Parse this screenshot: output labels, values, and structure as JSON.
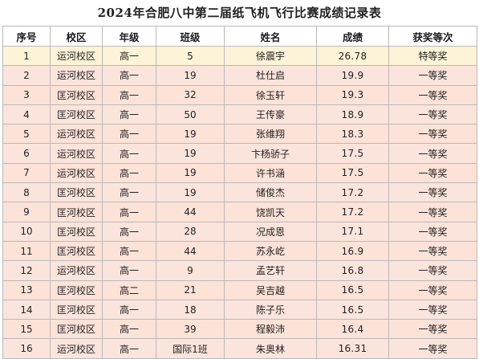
{
  "title": "2024年合肥八中第二届纸飞机飞行比赛成绩记录表",
  "columns": {
    "rank": "序号",
    "campus": "校区",
    "grade": "年级",
    "class": "班级",
    "name": "姓名",
    "score": "成绩",
    "award": "获奖等次"
  },
  "colors": {
    "first_row": "#fdf3d6",
    "row_a": "#fde2d8",
    "row_b": "#fbe4dc",
    "grid": "#b9b9b9"
  },
  "rows": [
    {
      "rank": "1",
      "campus": "运河校区",
      "grade": "高一",
      "class": "5",
      "name": "徐震宇",
      "score": "26.78",
      "award": "特等奖"
    },
    {
      "rank": "2",
      "campus": "运河校区",
      "grade": "高一",
      "class": "19",
      "name": "杜仕启",
      "score": "19.9",
      "award": "一等奖"
    },
    {
      "rank": "3",
      "campus": "匡河校区",
      "grade": "高一",
      "class": "32",
      "name": "徐玉轩",
      "score": "19.3",
      "award": "一等奖"
    },
    {
      "rank": "4",
      "campus": "匡河校区",
      "grade": "高一",
      "class": "50",
      "name": "王传豪",
      "score": "18.9",
      "award": "一等奖"
    },
    {
      "rank": "5",
      "campus": "运河校区",
      "grade": "高一",
      "class": "19",
      "name": "张维翔",
      "score": "18.3",
      "award": "一等奖"
    },
    {
      "rank": "6",
      "campus": "运河校区",
      "grade": "高一",
      "class": "19",
      "name": "卞杨骄子",
      "score": "17.5",
      "award": "一等奖"
    },
    {
      "rank": "7",
      "campus": "运河校区",
      "grade": "高一",
      "class": "19",
      "name": "许书涵",
      "score": "17.5",
      "award": "一等奖"
    },
    {
      "rank": "8",
      "campus": "匡河校区",
      "grade": "高一",
      "class": "19",
      "name": "储俊杰",
      "score": "17.2",
      "award": "一等奖"
    },
    {
      "rank": "9",
      "campus": "匡河校区",
      "grade": "高一",
      "class": "44",
      "name": "饶凯天",
      "score": "17.2",
      "award": "一等奖"
    },
    {
      "rank": "10",
      "campus": "匡河校区",
      "grade": "高一",
      "class": "28",
      "name": "况成恩",
      "score": "17.1",
      "award": "一等奖"
    },
    {
      "rank": "11",
      "campus": "匡河校区",
      "grade": "高一",
      "class": "44",
      "name": "苏永屹",
      "score": "16.9",
      "award": "一等奖"
    },
    {
      "rank": "12",
      "campus": "运河校区",
      "grade": "高一",
      "class": "9",
      "name": "孟艺轩",
      "score": "16.8",
      "award": "一等奖"
    },
    {
      "rank": "13",
      "campus": "匡河校区",
      "grade": "高二",
      "class": "21",
      "name": "吴吉越",
      "score": "16.5",
      "award": "一等奖"
    },
    {
      "rank": "14",
      "campus": "匡河校区",
      "grade": "高一",
      "class": "18",
      "name": "陈子乐",
      "score": "16.5",
      "award": "一等奖"
    },
    {
      "rank": "15",
      "campus": "匡河校区",
      "grade": "高一",
      "class": "39",
      "name": "程毅沛",
      "score": "16.4",
      "award": "一等奖"
    },
    {
      "rank": "16",
      "campus": "运河校区",
      "grade": "高一",
      "class": "国际1班",
      "name": "朱奥林",
      "score": "16.31",
      "award": "一等奖"
    }
  ]
}
